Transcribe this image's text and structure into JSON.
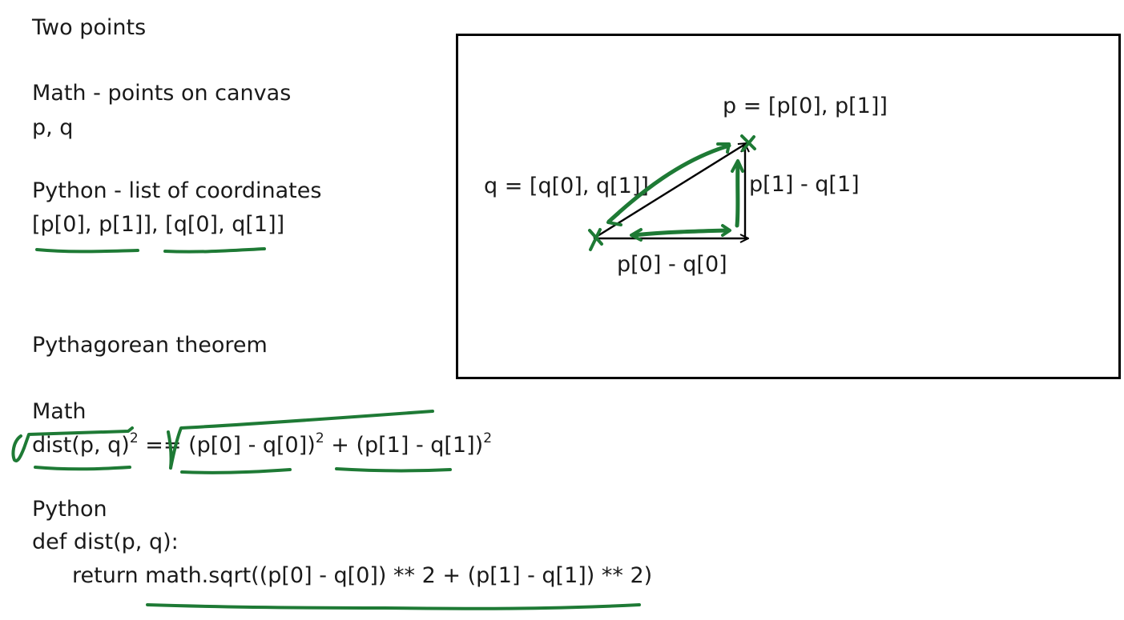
{
  "left": {
    "heading1": "Two points",
    "math_label": "Math - points on canvas",
    "points": "p, q",
    "python_label": "Python - list of coordinates",
    "coords": "[p[0], p[1]], [q[0], q[1]]",
    "heading2": "Pythagorean theorem",
    "math2_label": "Math",
    "formula": {
      "lhs": "dist(p, q)",
      "lhs_exp": "2",
      "op": " == ",
      "term1": "(p[0] - q[0])",
      "term1_exp": "2",
      "plus": " + ",
      "term2": "(p[1] - q[1])",
      "term2_exp": "2"
    },
    "python2_label": "Python",
    "def_line": "def dist(p, q):",
    "return_line": "return math.sqrt((p[0] - q[0]) ** 2 + (p[1] - q[1]) ** 2)"
  },
  "diagram": {
    "p_label": "p = [p[0], p[1]]",
    "q_label": "q = [q[0], q[1]]",
    "dy_label": "p[1] - q[1]",
    "dx_label": "p[0] - q[0]"
  },
  "colors": {
    "ink": "#1e7a35",
    "text": "#1a1a1a",
    "border": "#000000"
  }
}
